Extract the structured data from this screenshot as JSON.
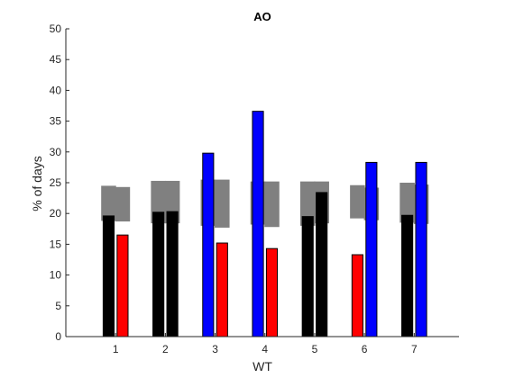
{
  "chart_data": {
    "type": "bar",
    "title": "AO",
    "xlabel": "WT",
    "ylabel": "% of days",
    "ylim": [
      0,
      50
    ],
    "yticks": [
      0,
      5,
      10,
      15,
      20,
      25,
      30,
      35,
      40,
      45,
      50
    ],
    "xlim": [
      0,
      7.9
    ],
    "categories": [
      "1",
      "2",
      "3",
      "4",
      "5",
      "6",
      "7"
    ],
    "grid": false,
    "bars": [
      {
        "category": "1",
        "offset": "left",
        "value": 19.6,
        "color": "#000000"
      },
      {
        "category": "1",
        "offset": "right",
        "value": 16.5,
        "color": "#ff0000"
      },
      {
        "category": "2",
        "offset": "left",
        "value": 20.2,
        "color": "#000000"
      },
      {
        "category": "2",
        "offset": "right",
        "value": 20.3,
        "color": "#000000"
      },
      {
        "category": "3",
        "offset": "left",
        "value": 29.8,
        "color": "#0000ff"
      },
      {
        "category": "3",
        "offset": "right",
        "value": 15.2,
        "color": "#ff0000"
      },
      {
        "category": "4",
        "offset": "left",
        "value": 36.6,
        "color": "#0000ff"
      },
      {
        "category": "4",
        "offset": "right",
        "value": 14.3,
        "color": "#ff0000"
      },
      {
        "category": "5",
        "offset": "left",
        "value": 19.5,
        "color": "#000000"
      },
      {
        "category": "5",
        "offset": "right",
        "value": 23.4,
        "color": "#000000"
      },
      {
        "category": "6",
        "offset": "left",
        "value": 13.3,
        "color": "#ff0000"
      },
      {
        "category": "6",
        "offset": "right",
        "value": 28.3,
        "color": "#0000ff"
      },
      {
        "category": "7",
        "offset": "left",
        "value": 19.7,
        "color": "#000000"
      },
      {
        "category": "7",
        "offset": "right",
        "value": 28.3,
        "color": "#0000ff"
      }
    ],
    "ranges": [
      {
        "category": "1",
        "offset": "left",
        "low": 18.8,
        "high": 24.5
      },
      {
        "category": "1",
        "offset": "right",
        "low": 18.7,
        "high": 24.3
      },
      {
        "category": "2",
        "offset": "left",
        "low": 18.4,
        "high": 25.3
      },
      {
        "category": "2",
        "offset": "right",
        "low": 18.4,
        "high": 25.3
      },
      {
        "category": "3",
        "offset": "left",
        "low": 18.0,
        "high": 25.5
      },
      {
        "category": "3",
        "offset": "right",
        "low": 17.7,
        "high": 25.5
      },
      {
        "category": "4",
        "offset": "left",
        "low": 18.2,
        "high": 25.2
      },
      {
        "category": "4",
        "offset": "right",
        "low": 17.8,
        "high": 25.2
      },
      {
        "category": "5",
        "offset": "left",
        "low": 18.0,
        "high": 25.2
      },
      {
        "category": "5",
        "offset": "right",
        "low": 18.4,
        "high": 25.2
      },
      {
        "category": "6",
        "offset": "left",
        "low": 19.2,
        "high": 24.6
      },
      {
        "category": "6",
        "offset": "right",
        "low": 18.9,
        "high": 24.2
      },
      {
        "category": "7",
        "offset": "left",
        "low": 18.5,
        "high": 25.0
      },
      {
        "category": "7",
        "offset": "right",
        "low": 18.3,
        "high": 24.7
      }
    ],
    "colors": {
      "range": "#808080",
      "axis": "#262626"
    }
  }
}
